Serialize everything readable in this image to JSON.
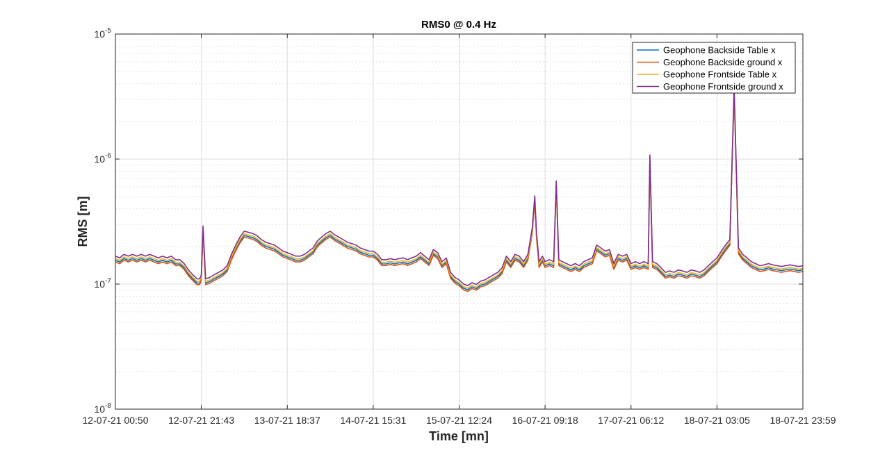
{
  "chart_data": {
    "type": "line",
    "title": "RMS0 @ 0.4 Hz",
    "xlabel": "Time [mn]",
    "ylabel": "RMS [m]",
    "yscale": "log",
    "ylim": [
      1e-08,
      1e-05
    ],
    "xlim": [
      0,
      8
    ],
    "y_tick_labels": [
      {
        "base": "10",
        "exp": "-8",
        "value": 1e-08
      },
      {
        "base": "10",
        "exp": "-7",
        "value": 1e-07
      },
      {
        "base": "10",
        "exp": "-6",
        "value": 1e-06
      },
      {
        "base": "10",
        "exp": "-5",
        "value": 1e-05
      }
    ],
    "x_tick_labels": [
      "12-07-21 00:50",
      "12-07-21 21:43",
      "13-07-21 18:37",
      "14-07-21 15:31",
      "15-07-21 12:24",
      "16-07-21 09:18",
      "17-07-21 06:12",
      "18-07-21 03:05",
      "18-07-21 23:59"
    ],
    "grid": true,
    "minor_grid": true,
    "legend_position": "top-right",
    "colors": [
      "#0072BD",
      "#D95319",
      "#EDB120",
      "#7E2F8E"
    ],
    "base_series": [
      [
        0.0,
        1.55e-07
      ],
      [
        0.05,
        1.5e-07
      ],
      [
        0.1,
        1.6e-07
      ],
      [
        0.15,
        1.55e-07
      ],
      [
        0.2,
        1.6e-07
      ],
      [
        0.25,
        1.55e-07
      ],
      [
        0.3,
        1.6e-07
      ],
      [
        0.35,
        1.55e-07
      ],
      [
        0.4,
        1.6e-07
      ],
      [
        0.45,
        1.55e-07
      ],
      [
        0.5,
        1.5e-07
      ],
      [
        0.55,
        1.55e-07
      ],
      [
        0.6,
        1.5e-07
      ],
      [
        0.65,
        1.55e-07
      ],
      [
        0.7,
        1.45e-07
      ],
      [
        0.75,
        1.45e-07
      ],
      [
        0.8,
        1.35e-07
      ],
      [
        0.85,
        1.2e-07
      ],
      [
        0.9,
        1.1e-07
      ],
      [
        0.95,
        1.02e-07
      ],
      [
        0.98,
        1.02e-07
      ],
      [
        1.0,
        1.1e-07
      ],
      [
        1.02,
        2.7e-07
      ],
      [
        1.05,
        1.02e-07
      ],
      [
        1.1,
        1.05e-07
      ],
      [
        1.15,
        1.1e-07
      ],
      [
        1.2,
        1.15e-07
      ],
      [
        1.25,
        1.2e-07
      ],
      [
        1.3,
        1.3e-07
      ],
      [
        1.35,
        1.6e-07
      ],
      [
        1.4,
        1.9e-07
      ],
      [
        1.45,
        2.2e-07
      ],
      [
        1.5,
        2.45e-07
      ],
      [
        1.55,
        2.4e-07
      ],
      [
        1.6,
        2.35e-07
      ],
      [
        1.65,
        2.25e-07
      ],
      [
        1.7,
        2.1e-07
      ],
      [
        1.75,
        2e-07
      ],
      [
        1.8,
        1.95e-07
      ],
      [
        1.85,
        1.9e-07
      ],
      [
        1.9,
        1.8e-07
      ],
      [
        1.95,
        1.7e-07
      ],
      [
        2.0,
        1.65e-07
      ],
      [
        2.05,
        1.6e-07
      ],
      [
        2.1,
        1.55e-07
      ],
      [
        2.15,
        1.55e-07
      ],
      [
        2.2,
        1.6e-07
      ],
      [
        2.25,
        1.7e-07
      ],
      [
        2.3,
        1.8e-07
      ],
      [
        2.35,
        2.05e-07
      ],
      [
        2.4,
        2.2e-07
      ],
      [
        2.45,
        2.35e-07
      ],
      [
        2.5,
        2.45e-07
      ],
      [
        2.55,
        2.3e-07
      ],
      [
        2.6,
        2.2e-07
      ],
      [
        2.65,
        2.1e-07
      ],
      [
        2.7,
        2e-07
      ],
      [
        2.75,
        1.95e-07
      ],
      [
        2.8,
        1.9e-07
      ],
      [
        2.85,
        1.8e-07
      ],
      [
        2.9,
        1.75e-07
      ],
      [
        2.95,
        1.7e-07
      ],
      [
        3.0,
        1.7e-07
      ],
      [
        3.05,
        1.6e-07
      ],
      [
        3.1,
        1.45e-07
      ],
      [
        3.15,
        1.45e-07
      ],
      [
        3.2,
        1.48e-07
      ],
      [
        3.25,
        1.45e-07
      ],
      [
        3.3,
        1.48e-07
      ],
      [
        3.35,
        1.5e-07
      ],
      [
        3.4,
        1.45e-07
      ],
      [
        3.45,
        1.5e-07
      ],
      [
        3.5,
        1.55e-07
      ],
      [
        3.55,
        1.65e-07
      ],
      [
        3.6,
        1.55e-07
      ],
      [
        3.65,
        1.45e-07
      ],
      [
        3.7,
        1.75e-07
      ],
      [
        3.75,
        1.65e-07
      ],
      [
        3.8,
        1.4e-07
      ],
      [
        3.85,
        1.5e-07
      ],
      [
        3.9,
        1.15e-07
      ],
      [
        3.95,
        1.05e-07
      ],
      [
        4.0,
        1e-07
      ],
      [
        4.05,
        9.3e-08
      ],
      [
        4.1,
        9e-08
      ],
      [
        4.15,
        9.5e-08
      ],
      [
        4.2,
        9.2e-08
      ],
      [
        4.25,
        9.8e-08
      ],
      [
        4.3,
        1e-07
      ],
      [
        4.35,
        1.05e-07
      ],
      [
        4.4,
        1.1e-07
      ],
      [
        4.45,
        1.15e-07
      ],
      [
        4.5,
        1.25e-07
      ],
      [
        4.55,
        1.55e-07
      ],
      [
        4.6,
        1.4e-07
      ],
      [
        4.65,
        1.6e-07
      ],
      [
        4.7,
        1.55e-07
      ],
      [
        4.75,
        1.4e-07
      ],
      [
        4.8,
        1.6e-07
      ],
      [
        4.85,
        2.6e-07
      ],
      [
        4.88,
        4.7e-07
      ],
      [
        4.9,
        2.4e-07
      ],
      [
        4.93,
        1.4e-07
      ],
      [
        4.97,
        1.55e-07
      ],
      [
        5.0,
        1.4e-07
      ],
      [
        5.05,
        1.45e-07
      ],
      [
        5.1,
        1.4e-07
      ],
      [
        5.13,
        6.2e-07
      ],
      [
        5.16,
        1.45e-07
      ],
      [
        5.2,
        1.4e-07
      ],
      [
        5.25,
        1.35e-07
      ],
      [
        5.3,
        1.3e-07
      ],
      [
        5.35,
        1.35e-07
      ],
      [
        5.4,
        1.3e-07
      ],
      [
        5.45,
        1.4e-07
      ],
      [
        5.5,
        1.45e-07
      ],
      [
        5.55,
        1.5e-07
      ],
      [
        5.6,
        1.9e-07
      ],
      [
        5.65,
        1.8e-07
      ],
      [
        5.7,
        1.7e-07
      ],
      [
        5.75,
        1.75e-07
      ],
      [
        5.8,
        1.35e-07
      ],
      [
        5.85,
        1.6e-07
      ],
      [
        5.9,
        1.55e-07
      ],
      [
        5.95,
        1.6e-07
      ],
      [
        6.0,
        1.35e-07
      ],
      [
        6.05,
        1.4e-07
      ],
      [
        6.1,
        1.35e-07
      ],
      [
        6.15,
        1.4e-07
      ],
      [
        6.2,
        1.35e-07
      ],
      [
        6.22,
        1e-06
      ],
      [
        6.25,
        1.4e-07
      ],
      [
        6.3,
        1.35e-07
      ],
      [
        6.35,
        1.25e-07
      ],
      [
        6.4,
        1.15e-07
      ],
      [
        6.45,
        1.18e-07
      ],
      [
        6.5,
        1.15e-07
      ],
      [
        6.55,
        1.2e-07
      ],
      [
        6.6,
        1.18e-07
      ],
      [
        6.65,
        1.15e-07
      ],
      [
        6.7,
        1.2e-07
      ],
      [
        6.75,
        1.18e-07
      ],
      [
        6.8,
        1.15e-07
      ],
      [
        6.85,
        1.2e-07
      ],
      [
        6.9,
        1.3e-07
      ],
      [
        6.95,
        1.4e-07
      ],
      [
        7.0,
        1.5e-07
      ],
      [
        7.05,
        1.7e-07
      ],
      [
        7.1,
        1.9e-07
      ],
      [
        7.15,
        2.1e-07
      ],
      [
        7.2,
        3.5e-06
      ],
      [
        7.25,
        1.8e-07
      ],
      [
        7.3,
        1.6e-07
      ],
      [
        7.35,
        1.5e-07
      ],
      [
        7.4,
        1.4e-07
      ],
      [
        7.45,
        1.35e-07
      ],
      [
        7.5,
        1.3e-07
      ],
      [
        7.55,
        1.32e-07
      ],
      [
        7.6,
        1.35e-07
      ],
      [
        7.65,
        1.32e-07
      ],
      [
        7.7,
        1.3e-07
      ],
      [
        7.75,
        1.28e-07
      ],
      [
        7.8,
        1.3e-07
      ],
      [
        7.85,
        1.32e-07
      ],
      [
        7.9,
        1.3e-07
      ],
      [
        7.95,
        1.28e-07
      ],
      [
        8.0,
        1.3e-07
      ]
    ],
    "series": [
      {
        "name": "Geophone Backside Table x",
        "scale": 1.0
      },
      {
        "name": "Geophone Backside ground x",
        "scale": 0.97
      },
      {
        "name": "Geophone Frontside Table x",
        "scale": 1.03
      },
      {
        "name": "Geophone Frontside ground x",
        "scale": 1.08
      }
    ]
  }
}
